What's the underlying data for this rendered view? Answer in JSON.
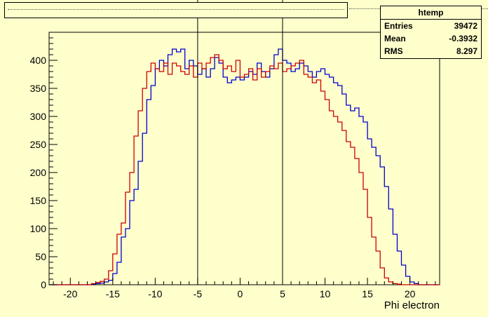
{
  "chart_data": {
    "type": "histogram",
    "title": "",
    "xlabel": "Phi electron",
    "ylabel": "",
    "xlim": [
      -22.5,
      23.5
    ],
    "ylim": [
      0,
      450
    ],
    "xticks": [
      -20,
      -15,
      -10,
      -5,
      0,
      5,
      10,
      15,
      20
    ],
    "yticks": [
      0,
      50,
      100,
      150,
      200,
      250,
      300,
      350,
      400
    ],
    "bin_width": 0.5,
    "grid": false,
    "vertical_lines": [
      -5,
      5
    ],
    "series": [
      {
        "color": "#0000cc",
        "x0": -22.5,
        "values": [
          0,
          0,
          0,
          0,
          0,
          0,
          0,
          0,
          0,
          0,
          1,
          2,
          3,
          5,
          8,
          20,
          40,
          85,
          100,
          150,
          170,
          220,
          270,
          330,
          355,
          385,
          400,
          390,
          410,
          420,
          415,
          420,
          385,
          400,
          390,
          375,
          385,
          370,
          385,
          405,
          395,
          370,
          360,
          365,
          370,
          365,
          370,
          380,
          375,
          395,
          380,
          370,
          385,
          410,
          420,
          400,
          395,
          380,
          385,
          395,
          390,
          380,
          370,
          380,
          385,
          375,
          370,
          360,
          355,
          340,
          320,
          310,
          315,
          300,
          290,
          260,
          245,
          230,
          210,
          175,
          135,
          90,
          60,
          35,
          15,
          5,
          2,
          0,
          0,
          0,
          0,
          0
        ]
      },
      {
        "color": "#cc0000",
        "x0": -22.5,
        "values": [
          0,
          0,
          0,
          0,
          0,
          0,
          0,
          0,
          0,
          0,
          2,
          4,
          6,
          10,
          25,
          55,
          90,
          110,
          165,
          200,
          265,
          310,
          350,
          380,
          395,
          385,
          380,
          395,
          375,
          395,
          390,
          380,
          375,
          390,
          370,
          395,
          385,
          395,
          405,
          410,
          400,
          385,
          390,
          380,
          400,
          370,
          375,
          385,
          365,
          385,
          370,
          380,
          390,
          385,
          395,
          380,
          385,
          390,
          395,
          400,
          375,
          370,
          360,
          365,
          345,
          330,
          310,
          300,
          290,
          275,
          255,
          245,
          225,
          200,
          170,
          120,
          85,
          60,
          30,
          12,
          5,
          2,
          1,
          0,
          0,
          0,
          0,
          0,
          0,
          0,
          0,
          0
        ]
      }
    ]
  },
  "stats": {
    "title": "htemp",
    "rows": [
      {
        "key": "Entries",
        "value": "39472"
      },
      {
        "key": "Mean",
        "value": "-0.3932"
      },
      {
        "key": "RMS",
        "value": "8.297"
      }
    ]
  }
}
